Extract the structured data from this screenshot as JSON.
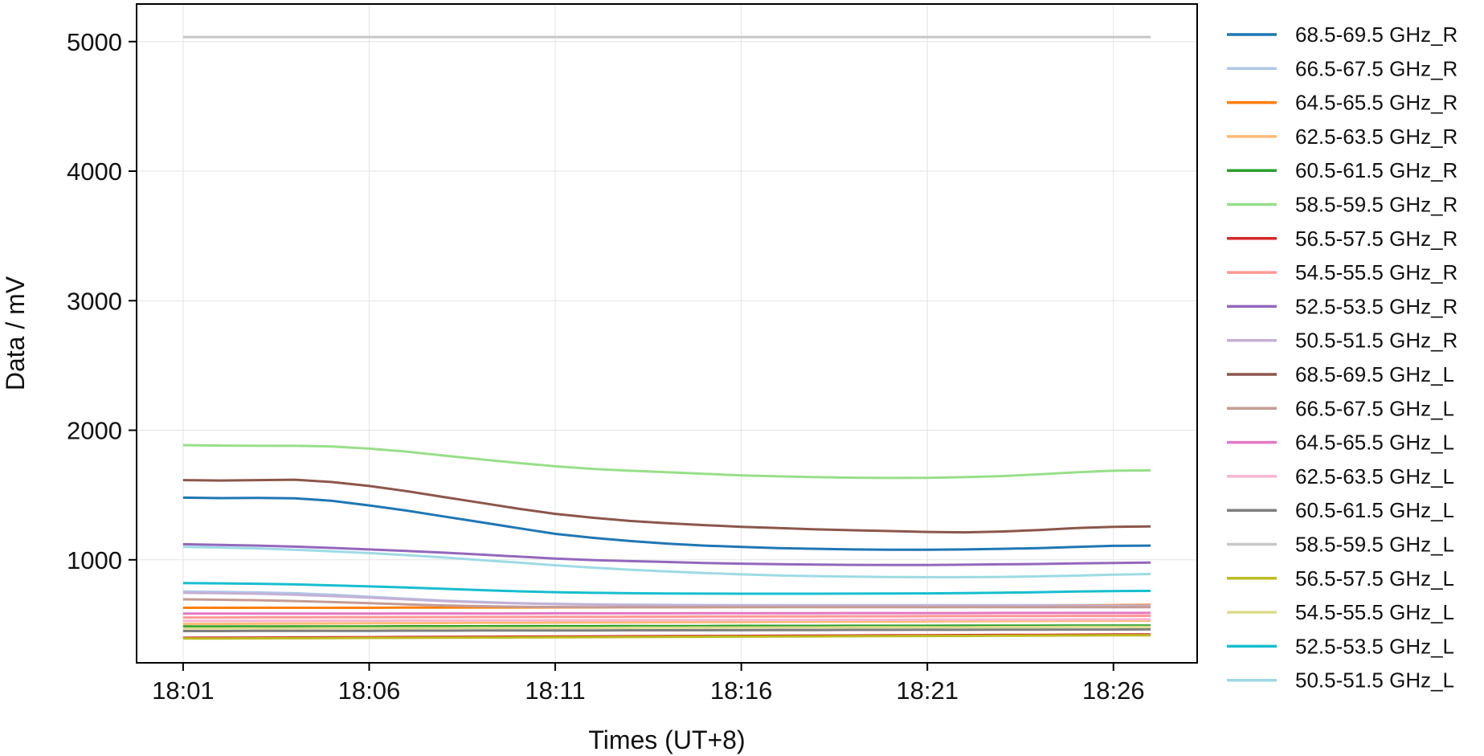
{
  "chart_data": {
    "type": "line",
    "title": "",
    "xlabel": "Times (UT+8)",
    "ylabel": "Data / mV",
    "x_ticks": [
      "18:01",
      "18:06",
      "18:11",
      "18:16",
      "18:21",
      "18:26"
    ],
    "y_ticks": [
      1000,
      2000,
      3000,
      4000,
      5000
    ],
    "xlim": [
      "17:59:45",
      "18:28:15"
    ],
    "ylim": [
      205,
      5290
    ],
    "grid": true,
    "legend_position": "outside-right",
    "x": [
      "18:01",
      "18:02",
      "18:03",
      "18:04",
      "18:05",
      "18:06",
      "18:07",
      "18:08",
      "18:09",
      "18:10",
      "18:11",
      "18:12",
      "18:13",
      "18:14",
      "18:15",
      "18:16",
      "18:17",
      "18:18",
      "18:19",
      "18:20",
      "18:21",
      "18:22",
      "18:23",
      "18:24",
      "18:25",
      "18:26",
      "18:27"
    ],
    "series": [
      {
        "name": "68.5-69.5 GHz_R",
        "color": "#1f77b4",
        "values": [
          1480,
          1476,
          1478,
          1475,
          1455,
          1420,
          1380,
          1335,
          1290,
          1245,
          1200,
          1170,
          1145,
          1125,
          1110,
          1100,
          1090,
          1085,
          1080,
          1078,
          1078,
          1080,
          1085,
          1090,
          1100,
          1108,
          1110
        ]
      },
      {
        "name": "66.5-67.5 GHz_R",
        "color": "#aec7e8",
        "values": [
          755,
          752,
          748,
          742,
          730,
          715,
          700,
          685,
          675,
          665,
          660,
          656,
          654,
          652,
          651,
          650,
          650,
          650,
          650,
          650,
          650,
          650,
          650,
          650,
          650,
          650,
          650
        ]
      },
      {
        "name": "64.5-65.5 GHz_R",
        "color": "#ff7f0e",
        "values": [
          630,
          630,
          630,
          630,
          630,
          630,
          631,
          631,
          632,
          632,
          633,
          633,
          634,
          634,
          635,
          636,
          637,
          638,
          639,
          640,
          641,
          642,
          644,
          646,
          648,
          650,
          652
        ]
      },
      {
        "name": "62.5-63.5 GHz_R",
        "color": "#ffbb78",
        "values": [
          505,
          506,
          507,
          508,
          509,
          510,
          511,
          512,
          513,
          514,
          515,
          516,
          517,
          518,
          519,
          520,
          521,
          522,
          523,
          524,
          525,
          526,
          527,
          528,
          529,
          530,
          530
        ]
      },
      {
        "name": "60.5-61.5 GHz_R",
        "color": "#2ca02c",
        "values": [
          485,
          485,
          485,
          486,
          486,
          486,
          487,
          487,
          487,
          488,
          488,
          488,
          489,
          489,
          489,
          490,
          490,
          490,
          491,
          491,
          491,
          492,
          492,
          492,
          493,
          493,
          493
        ]
      },
      {
        "name": "58.5-59.5 GHz_R",
        "color": "#98df8a",
        "values": [
          1885,
          1882,
          1880,
          1880,
          1875,
          1858,
          1835,
          1805,
          1775,
          1748,
          1722,
          1702,
          1688,
          1676,
          1664,
          1652,
          1644,
          1638,
          1634,
          1632,
          1633,
          1638,
          1646,
          1660,
          1675,
          1688,
          1690
        ]
      },
      {
        "name": "56.5-57.5 GHz_R",
        "color": "#d62728",
        "values": [
          398,
          399,
          400,
          401,
          402,
          403,
          404,
          405,
          406,
          407,
          408,
          409,
          410,
          411,
          412,
          413,
          414,
          415,
          416,
          417,
          418,
          419,
          420,
          421,
          422,
          423,
          424
        ]
      },
      {
        "name": "54.5-55.5 GHz_R",
        "color": "#ff9896",
        "values": [
          555,
          555,
          556,
          556,
          557,
          557,
          558,
          558,
          559,
          559,
          560,
          560,
          561,
          561,
          562,
          562,
          563,
          563,
          564,
          564,
          565,
          565,
          566,
          566,
          567,
          567,
          568
        ]
      },
      {
        "name": "52.5-53.5 GHz_R",
        "color": "#9467bd",
        "values": [
          1120,
          1115,
          1110,
          1102,
          1092,
          1080,
          1068,
          1055,
          1040,
          1025,
          1010,
          998,
          990,
          983,
          976,
          970,
          966,
          963,
          961,
          960,
          960,
          962,
          965,
          968,
          972,
          976,
          978
        ]
      },
      {
        "name": "50.5-51.5 GHz_R",
        "color": "#c5b0d5",
        "values": [
          745,
          742,
          738,
          730,
          720,
          708,
          695,
          682,
          672,
          664,
          658,
          654,
          651,
          649,
          648,
          647,
          646,
          646,
          646,
          646,
          646,
          646,
          646,
          646,
          646,
          646,
          646
        ]
      },
      {
        "name": "68.5-69.5 GHz_L",
        "color": "#8c564b",
        "values": [
          1615,
          1612,
          1615,
          1618,
          1600,
          1570,
          1530,
          1485,
          1440,
          1395,
          1355,
          1325,
          1300,
          1282,
          1268,
          1255,
          1245,
          1235,
          1228,
          1222,
          1215,
          1212,
          1218,
          1230,
          1245,
          1255,
          1258
        ]
      },
      {
        "name": "66.5-67.5 GHz_L",
        "color": "#c49c94",
        "values": [
          695,
          692,
          688,
          682,
          674,
          665,
          656,
          648,
          642,
          638,
          636,
          635,
          634,
          634,
          634,
          634,
          634,
          634,
          634,
          634,
          634,
          634,
          634,
          634,
          634,
          634,
          634
        ]
      },
      {
        "name": "64.5-65.5 GHz_L",
        "color": "#e377c2",
        "values": [
          585,
          585,
          585,
          585,
          585,
          585,
          586,
          586,
          586,
          586,
          587,
          587,
          587,
          587,
          588,
          588,
          588,
          588,
          589,
          589,
          589,
          589,
          590,
          590,
          590,
          590,
          590
        ]
      },
      {
        "name": "62.5-63.5 GHz_L",
        "color": "#f7b6d2",
        "values": [
          528,
          528,
          529,
          529,
          530,
          530,
          531,
          531,
          532,
          532,
          533,
          533,
          534,
          534,
          535,
          535,
          536,
          536,
          537,
          537,
          538,
          538,
          539,
          539,
          540,
          540,
          541
        ]
      },
      {
        "name": "60.5-61.5 GHz_L",
        "color": "#7f7f7f",
        "values": [
          450,
          450,
          451,
          451,
          452,
          452,
          453,
          453,
          454,
          454,
          455,
          455,
          456,
          456,
          457,
          457,
          458,
          458,
          459,
          459,
          460,
          460,
          461,
          461,
          462,
          462,
          463
        ]
      },
      {
        "name": "58.5-59.5 GHz_L",
        "color": "#c7c7c7",
        "values": [
          5035,
          5035,
          5035,
          5035,
          5035,
          5035,
          5035,
          5035,
          5035,
          5035,
          5035,
          5035,
          5035,
          5035,
          5035,
          5035,
          5035,
          5035,
          5035,
          5035,
          5035,
          5035,
          5035,
          5035,
          5035,
          5035,
          5035
        ]
      },
      {
        "name": "56.5-57.5 GHz_L",
        "color": "#bcbd22",
        "values": [
          392,
          393,
          394,
          395,
          396,
          397,
          398,
          399,
          400,
          401,
          402,
          403,
          404,
          405,
          406,
          407,
          408,
          409,
          410,
          411,
          412,
          413,
          414,
          415,
          416,
          417,
          418
        ]
      },
      {
        "name": "54.5-55.5 GHz_L",
        "color": "#dbdb8d",
        "values": [
          470,
          470,
          471,
          471,
          472,
          472,
          473,
          473,
          474,
          474,
          475,
          475,
          476,
          476,
          477,
          477,
          478,
          478,
          479,
          479,
          480,
          480,
          481,
          481,
          482,
          482,
          483
        ]
      },
      {
        "name": "52.5-53.5 GHz_L",
        "color": "#17becf",
        "values": [
          820,
          818,
          815,
          810,
          803,
          795,
          786,
          776,
          766,
          757,
          750,
          745,
          742,
          740,
          739,
          738,
          738,
          738,
          739,
          740,
          741,
          743,
          746,
          750,
          755,
          759,
          760
        ]
      },
      {
        "name": "50.5-51.5 GHz_L",
        "color": "#9edae5",
        "values": [
          1100,
          1095,
          1088,
          1078,
          1066,
          1052,
          1036,
          1018,
          998,
          978,
          958,
          940,
          924,
          910,
          898,
          888,
          880,
          874,
          870,
          867,
          866,
          866,
          868,
          872,
          878,
          885,
          890
        ]
      }
    ]
  }
}
